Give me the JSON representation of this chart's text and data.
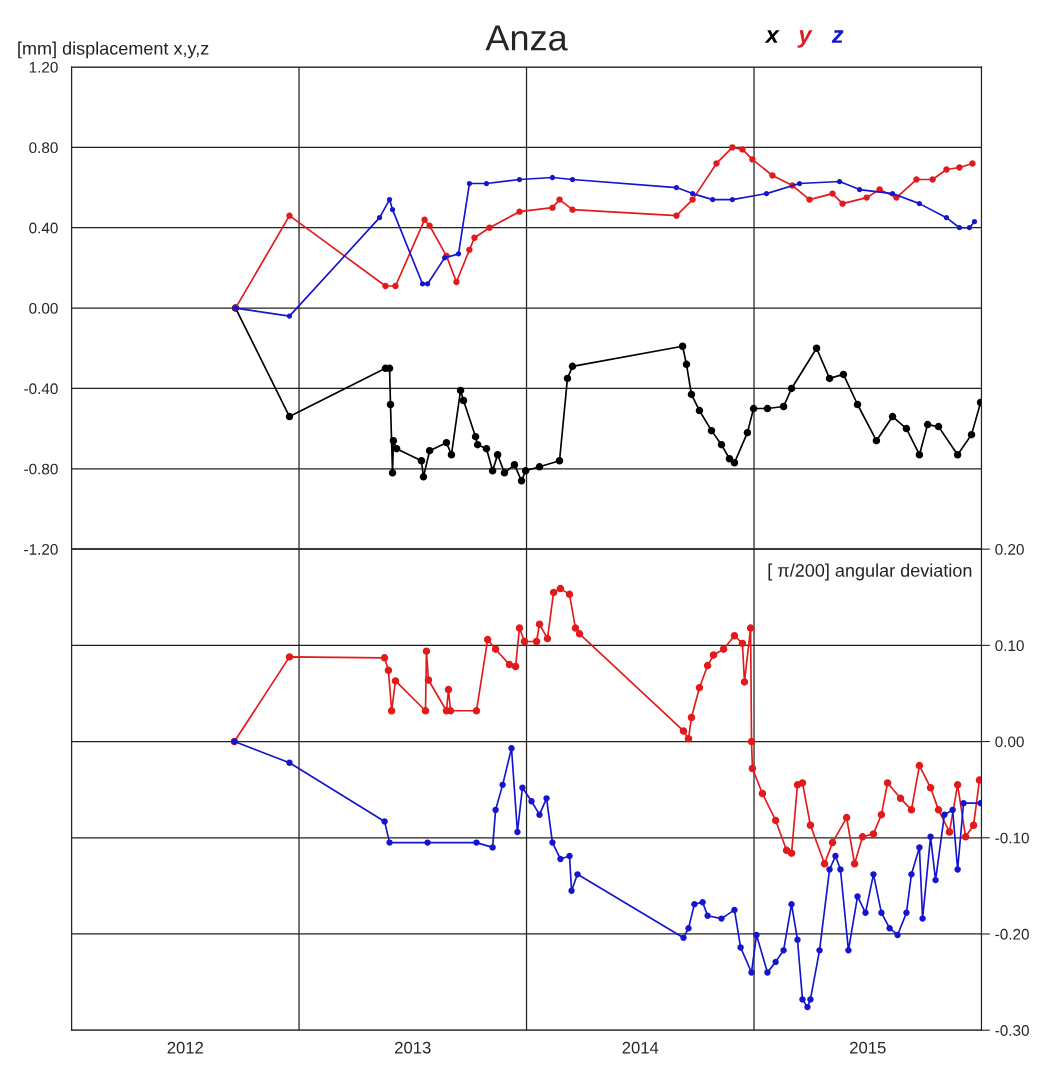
{
  "chart_data": [
    {
      "type": "line",
      "title": "Anza",
      "ylabel": "[mm] displacement x,y,z",
      "marker": "circle",
      "line_style": "solid",
      "grid": true,
      "legend": "top right",
      "tick_labels": "y",
      "xlim": [
        2012,
        2016
      ],
      "xticks": [
        {
          "value": 2012,
          "label": null
        },
        {
          "value": 2013,
          "label": null
        },
        {
          "value": 2014,
          "label": null
        },
        {
          "value": 2015,
          "label": null
        },
        {
          "value": 2016,
          "label": null
        }
      ],
      "ylim": [
        -1.2,
        1.2
      ],
      "yticks": [
        {
          "value": -1.2,
          "label": "-1.20"
        },
        {
          "value": -0.8,
          "label": "-0.80"
        },
        {
          "value": -0.4,
          "label": "-0.40"
        },
        {
          "value": 0,
          "label": "0.00"
        },
        {
          "value": 0.4,
          "label": "0.40"
        },
        {
          "value": 0.8,
          "label": "0.80"
        },
        {
          "value": 1.2,
          "label": "1.20"
        }
      ],
      "series": [
        {
          "name": "x",
          "color": "#000000",
          "x": [
            2012.721,
            2012.958,
            2013.38,
            2013.398,
            2013.402,
            2013.411,
            2013.415,
            2013.429,
            2013.538,
            2013.547,
            2013.574,
            2013.648,
            2013.67,
            2013.71,
            2013.723,
            2013.776,
            2013.785,
            2013.824,
            2013.851,
            2013.873,
            2013.903,
            2013.947,
            2013.978,
            2013.996,
            2014.057,
            2014.145,
            2014.18,
            2014.202,
            2014.686,
            2014.703,
            2014.725,
            2014.76,
            2014.813,
            2014.857,
            2014.892,
            2014.914,
            2014.971,
            2014.998,
            2015.059,
            2015.13,
            2015.165,
            2015.275,
            2015.332,
            2015.393,
            2015.455,
            2015.538,
            2015.609,
            2015.67,
            2015.727,
            2015.763,
            2015.811,
            2015.895,
            2015.956,
            2015.996
          ],
          "values": [
            0,
            -0.54,
            -0.3,
            -0.3,
            -0.48,
            -0.82,
            -0.66,
            -0.7,
            -0.76,
            -0.84,
            -0.71,
            -0.67,
            -0.73,
            -0.41,
            -0.46,
            -0.64,
            -0.68,
            -0.7,
            -0.81,
            -0.73,
            -0.82,
            -0.78,
            -0.86,
            -0.81,
            -0.79,
            -0.76,
            -0.35,
            -0.29,
            -0.19,
            -0.28,
            -0.43,
            -0.51,
            -0.61,
            -0.68,
            -0.75,
            -0.77,
            -0.62,
            -0.5,
            -0.5,
            -0.49,
            -0.4,
            -0.2,
            -0.35,
            -0.33,
            -0.48,
            -0.66,
            -0.54,
            -0.6,
            -0.73,
            -0.58,
            -0.59,
            -0.73,
            -0.63,
            -0.47
          ]
        },
        {
          "name": "y",
          "color": "#e31a1c",
          "x": [
            2012.721,
            2012.958,
            2013.38,
            2013.424,
            2013.552,
            2013.574,
            2013.648,
            2013.692,
            2013.749,
            2013.771,
            2013.837,
            2013.969,
            2014.114,
            2014.145,
            2014.202,
            2014.659,
            2014.73,
            2014.835,
            2014.905,
            2014.949,
            2014.993,
            2015.081,
            2015.169,
            2015.244,
            2015.345,
            2015.389,
            2015.495,
            2015.552,
            2015.626,
            2015.714,
            2015.785,
            2015.846,
            2015.903,
            2015.96
          ],
          "values": [
            0,
            0.46,
            0.11,
            0.11,
            0.44,
            0.41,
            0.26,
            0.13,
            0.29,
            0.35,
            0.4,
            0.48,
            0.5,
            0.54,
            0.49,
            0.46,
            0.54,
            0.72,
            0.8,
            0.79,
            0.74,
            0.66,
            0.61,
            0.54,
            0.57,
            0.52,
            0.55,
            0.59,
            0.55,
            0.64,
            0.64,
            0.69,
            0.7,
            0.72
          ]
        },
        {
          "name": "z",
          "color": "#1515d0",
          "x": [
            2012.721,
            2012.958,
            2013.354,
            2013.398,
            2013.411,
            2013.543,
            2013.565,
            2013.64,
            2013.701,
            2013.749,
            2013.824,
            2013.969,
            2014.114,
            2014.202,
            2014.659,
            2014.73,
            2014.818,
            2014.905,
            2015.055,
            2015.2,
            2015.376,
            2015.464,
            2015.609,
            2015.727,
            2015.846,
            2015.903,
            2015.947,
            2015.969
          ],
          "values": [
            0,
            -0.04,
            0.45,
            0.54,
            0.49,
            0.12,
            0.12,
            0.25,
            0.27,
            0.62,
            0.62,
            0.64,
            0.65,
            0.64,
            0.6,
            0.57,
            0.54,
            0.54,
            0.57,
            0.62,
            0.63,
            0.59,
            0.57,
            0.52,
            0.45,
            0.4,
            0.4,
            0.43
          ]
        }
      ]
    },
    {
      "type": "line",
      "ylabel": "[ π/200] angular deviation",
      "marker": "circle",
      "line_style": "solid",
      "grid": true,
      "xlim": [
        2012,
        2016
      ],
      "xticks": [
        {
          "value": 2012,
          "label": null
        },
        {
          "value": 2012.5,
          "label": "2012"
        },
        {
          "value": 2013,
          "label": null
        },
        {
          "value": 2013.5,
          "label": "2013"
        },
        {
          "value": 2014,
          "label": null
        },
        {
          "value": 2014.5,
          "label": "2014"
        },
        {
          "value": 2015,
          "label": null
        },
        {
          "value": 2015.5,
          "label": "2015"
        },
        {
          "value": 2016,
          "label": null
        }
      ],
      "ylim": [
        -0.3,
        0.2
      ],
      "yticks": [
        {
          "value": -0.3,
          "label": "-0.30"
        },
        {
          "value": -0.2,
          "label": "-0.20"
        },
        {
          "value": -0.1,
          "label": "-0.10"
        },
        {
          "value": 0,
          "label": "0.00"
        },
        {
          "value": 0.1,
          "label": "0.10"
        },
        {
          "value": 0.2,
          "label": "0.20"
        }
      ],
      "series": [
        {
          "color": "#e31a1c",
          "x": [
            2012.716,
            2012.958,
            2013.376,
            2013.393,
            2013.407,
            2013.424,
            2013.556,
            2013.56,
            2013.569,
            2013.648,
            2013.657,
            2013.666,
            2013.78,
            2013.829,
            2013.864,
            2013.925,
            2013.952,
            2013.969,
            2013.991,
            2014.044,
            2014.057,
            2014.092,
            2014.119,
            2014.149,
            2014.189,
            2014.215,
            2014.233,
            2014.69,
            2014.712,
            2014.725,
            2014.76,
            2014.796,
            2014.822,
            2014.866,
            2014.914,
            2014.949,
            2014.958,
            2014.985,
            2014.989,
            2014.993,
            2015.037,
            2015.095,
            2015.143,
            2015.165,
            2015.191,
            2015.213,
            2015.248,
            2015.31,
            2015.345,
            2015.407,
            2015.442,
            2015.477,
            2015.525,
            2015.56,
            2015.587,
            2015.644,
            2015.692,
            2015.727,
            2015.776,
            2015.811,
            2015.859,
            2015.895,
            2015.93,
            2015.965,
            2015.991
          ],
          "values": [
            0,
            0.088,
            0.087,
            0.074,
            0.032,
            0.063,
            0.032,
            0.094,
            0.064,
            0.032,
            0.054,
            0.032,
            0.032,
            0.106,
            0.096,
            0.08,
            0.078,
            0.118,
            0.104,
            0.104,
            0.122,
            0.107,
            0.155,
            0.159,
            0.153,
            0.118,
            0.112,
            0.011,
            0.003,
            0.025,
            0.056,
            0.079,
            0.09,
            0.096,
            0.11,
            0.102,
            0.062,
            0.118,
            0.0,
            -0.028,
            -0.054,
            -0.082,
            -0.113,
            -0.116,
            -0.045,
            -0.043,
            -0.087,
            -0.127,
            -0.105,
            -0.079,
            -0.127,
            -0.099,
            -0.096,
            -0.076,
            -0.043,
            -0.059,
            -0.071,
            -0.025,
            -0.048,
            -0.071,
            -0.094,
            -0.045,
            -0.099,
            -0.087,
            -0.04
          ]
        },
        {
          "color": "#1515d0",
          "x": [
            2012.716,
            2012.958,
            2013.376,
            2013.398,
            2013.565,
            2013.78,
            2013.851,
            2013.864,
            2013.895,
            2013.934,
            2013.96,
            2013.982,
            2014.022,
            2014.057,
            2014.088,
            2014.114,
            2014.149,
            2014.189,
            2014.198,
            2014.224,
            2014.69,
            2014.712,
            2014.738,
            2014.774,
            2014.796,
            2014.857,
            2014.914,
            2014.941,
            2014.989,
            2015.011,
            2015.059,
            2015.095,
            2015.13,
            2015.165,
            2015.191,
            2015.213,
            2015.235,
            2015.248,
            2015.288,
            2015.332,
            2015.358,
            2015.38,
            2015.415,
            2015.455,
            2015.49,
            2015.525,
            2015.56,
            2015.596,
            2015.631,
            2015.67,
            2015.692,
            2015.727,
            2015.741,
            2015.776,
            2015.798,
            2015.837,
            2015.873,
            2015.895,
            2015.921,
            2015.996
          ],
          "values": [
            0,
            -0.022,
            -0.083,
            -0.105,
            -0.105,
            -0.105,
            -0.11,
            -0.071,
            -0.045,
            -0.007,
            -0.094,
            -0.048,
            -0.062,
            -0.076,
            -0.059,
            -0.105,
            -0.122,
            -0.119,
            -0.155,
            -0.138,
            -0.204,
            -0.194,
            -0.169,
            -0.167,
            -0.181,
            -0.184,
            -0.175,
            -0.214,
            -0.24,
            -0.201,
            -0.24,
            -0.229,
            -0.217,
            -0.169,
            -0.206,
            -0.268,
            -0.276,
            -0.268,
            -0.217,
            -0.133,
            -0.119,
            -0.133,
            -0.217,
            -0.161,
            -0.178,
            -0.138,
            -0.178,
            -0.194,
            -0.201,
            -0.178,
            -0.138,
            -0.11,
            -0.184,
            -0.099,
            -0.144,
            -0.076,
            -0.071,
            -0.133,
            -0.064,
            -0.064
          ]
        }
      ]
    }
  ]
}
